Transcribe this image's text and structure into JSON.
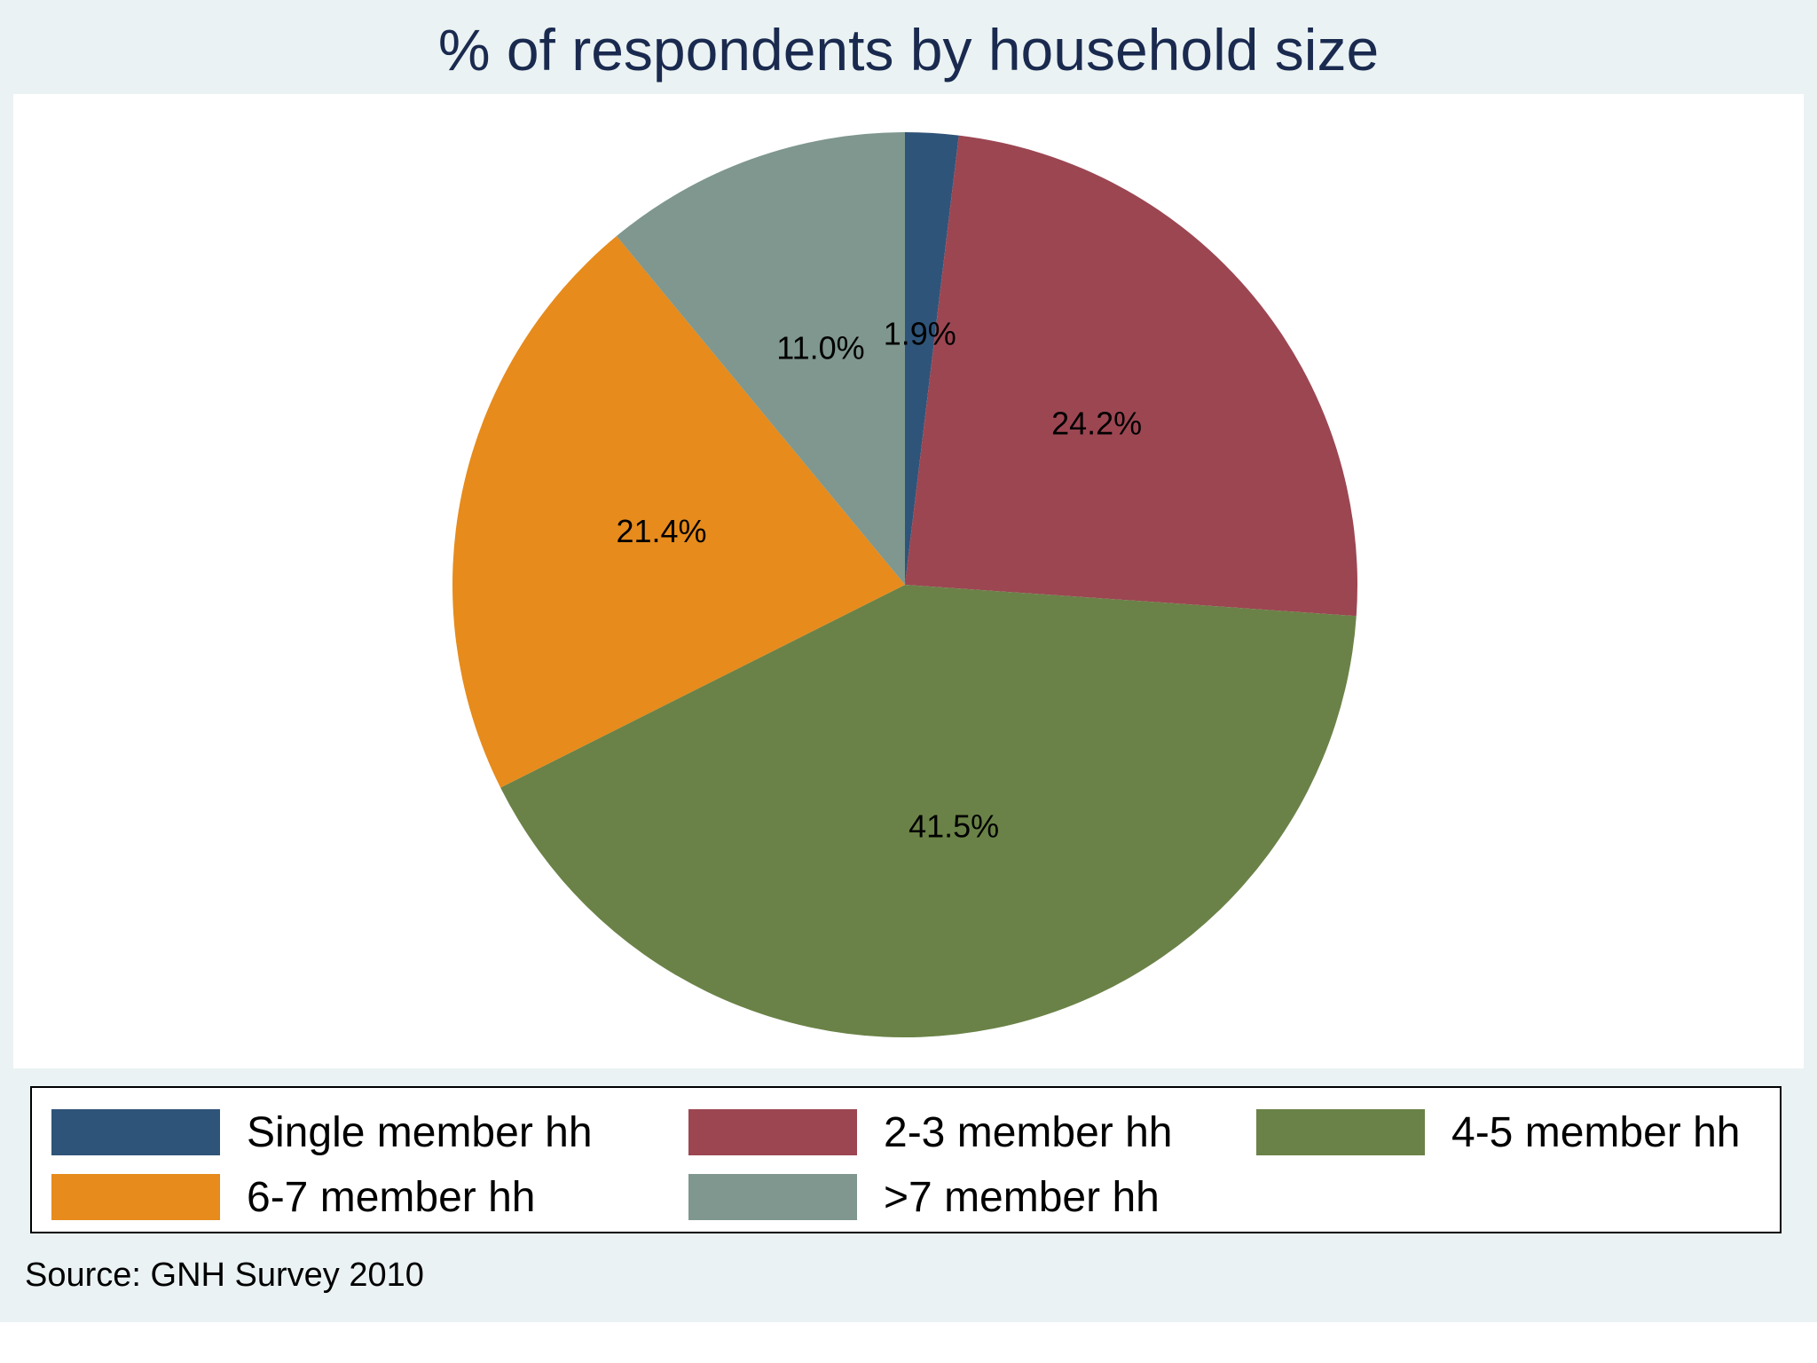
{
  "chart_data": {
    "type": "pie",
    "title": "% of respondents by household size",
    "slices": [
      {
        "label": "Single member hh",
        "value": 1.9,
        "value_label": "1.9%",
        "color": "#2f5479"
      },
      {
        "label": "2-3 member hh",
        "value": 24.2,
        "value_label": "24.2%",
        "color": "#9c4652"
      },
      {
        "label": "4-5 member hh",
        "value": 41.5,
        "value_label": "41.5%",
        "color": "#6a8247"
      },
      {
        "label": "6-7 member hh",
        "value": 21.4,
        "value_label": "21.4%",
        "color": "#e68b1c"
      },
      {
        "label": ">7 member hh",
        "value": 11.0,
        "value_label": "11.0%",
        "color": "#7f978e"
      }
    ],
    "start": "top",
    "direction": "clockwise",
    "legend_placement": "bottom",
    "note": "Source: GNH Survey 2010"
  }
}
